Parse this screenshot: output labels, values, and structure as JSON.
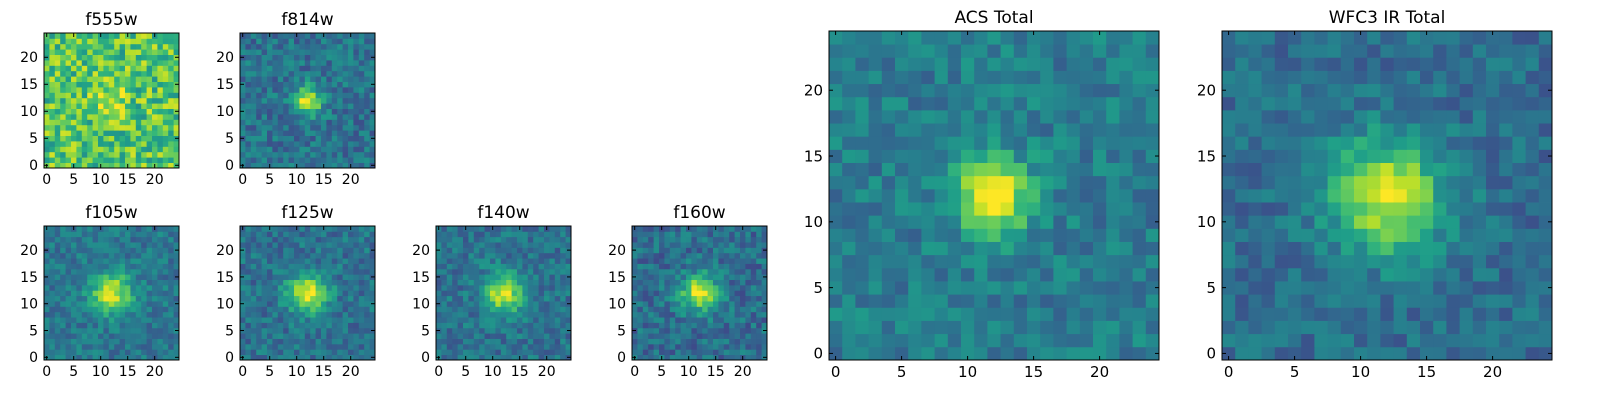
{
  "chart_data": [
    {
      "type": "heatmap",
      "title": "f555w",
      "xlim": [
        -0.5,
        24.5
      ],
      "ylim": [
        -0.5,
        24.5
      ],
      "origin": "lower",
      "colormap": "viridis",
      "xticks": [
        "0",
        "5",
        "10",
        "15",
        "20"
      ],
      "yticks": [
        "0",
        "5",
        "10",
        "15",
        "20"
      ],
      "grid_size": [
        25,
        25
      ],
      "source_center": [
        12,
        12
      ],
      "source_width": 2.0,
      "source_peak": 0.25,
      "background": 0.72,
      "noise": 0.22
    },
    {
      "type": "heatmap",
      "title": "f814w",
      "xlim": [
        -0.5,
        24.5
      ],
      "ylim": [
        -0.5,
        24.5
      ],
      "origin": "lower",
      "colormap": "viridis",
      "xticks": [
        "0",
        "5",
        "10",
        "15",
        "20"
      ],
      "yticks": [
        "0",
        "5",
        "10",
        "15",
        "20"
      ],
      "grid_size": [
        25,
        25
      ],
      "source_center": [
        12,
        12
      ],
      "source_width": 1.8,
      "source_peak": 0.6,
      "background": 0.38,
      "noise": 0.14
    },
    {
      "type": "heatmap",
      "title": "f105w",
      "xlim": [
        -0.5,
        24.5
      ],
      "ylim": [
        -0.5,
        24.5
      ],
      "origin": "lower",
      "colormap": "viridis",
      "xticks": [
        "0",
        "5",
        "10",
        "15",
        "20"
      ],
      "yticks": [
        "0",
        "5",
        "10",
        "15",
        "20"
      ],
      "grid_size": [
        25,
        25
      ],
      "source_center": [
        12,
        12
      ],
      "source_width": 2.6,
      "source_peak": 0.55,
      "background": 0.4,
      "noise": 0.12
    },
    {
      "type": "heatmap",
      "title": "f125w",
      "xlim": [
        -0.5,
        24.5
      ],
      "ylim": [
        -0.5,
        24.5
      ],
      "origin": "lower",
      "colormap": "viridis",
      "xticks": [
        "0",
        "5",
        "10",
        "15",
        "20"
      ],
      "yticks": [
        "0",
        "5",
        "10",
        "15",
        "20"
      ],
      "grid_size": [
        25,
        25
      ],
      "source_center": [
        12,
        12
      ],
      "source_width": 2.6,
      "source_peak": 0.55,
      "background": 0.38,
      "noise": 0.13
    },
    {
      "type": "heatmap",
      "title": "f140w",
      "xlim": [
        -0.5,
        24.5
      ],
      "ylim": [
        -0.5,
        24.5
      ],
      "origin": "lower",
      "colormap": "viridis",
      "xticks": [
        "0",
        "5",
        "10",
        "15",
        "20"
      ],
      "yticks": [
        "0",
        "5",
        "10",
        "15",
        "20"
      ],
      "grid_size": [
        25,
        25
      ],
      "source_center": [
        12,
        12
      ],
      "source_width": 2.6,
      "source_peak": 0.55,
      "background": 0.38,
      "noise": 0.13
    },
    {
      "type": "heatmap",
      "title": "f160w",
      "xlim": [
        -0.5,
        24.5
      ],
      "ylim": [
        -0.5,
        24.5
      ],
      "origin": "lower",
      "colormap": "viridis",
      "xticks": [
        "0",
        "5",
        "10",
        "15",
        "20"
      ],
      "yticks": [
        "0",
        "5",
        "10",
        "15",
        "20"
      ],
      "grid_size": [
        25,
        25
      ],
      "source_center": [
        12,
        12
      ],
      "source_width": 2.4,
      "source_peak": 0.58,
      "background": 0.36,
      "noise": 0.14
    },
    {
      "type": "heatmap",
      "title": "ACS Total",
      "xlim": [
        -0.5,
        24.5
      ],
      "ylim": [
        -0.5,
        24.5
      ],
      "origin": "lower",
      "colormap": "viridis",
      "xticks": [
        "0",
        "5",
        "10",
        "15",
        "20"
      ],
      "yticks": [
        "0",
        "5",
        "10",
        "15",
        "20"
      ],
      "grid_size": [
        25,
        25
      ],
      "source_center": [
        12,
        12
      ],
      "source_width": 2.0,
      "source_peak": 0.6,
      "background": 0.42,
      "noise": 0.12
    },
    {
      "type": "heatmap",
      "title": "WFC3 IR Total",
      "xlim": [
        -0.5,
        24.5
      ],
      "ylim": [
        -0.5,
        24.5
      ],
      "origin": "lower",
      "colormap": "viridis",
      "xticks": [
        "0",
        "5",
        "10",
        "15",
        "20"
      ],
      "yticks": [
        "0",
        "5",
        "10",
        "15",
        "20"
      ],
      "grid_size": [
        25,
        25
      ],
      "source_center": [
        12,
        12
      ],
      "source_width": 3.0,
      "source_peak": 0.6,
      "background": 0.36,
      "noise": 0.11
    }
  ],
  "colors": {
    "viridis_stops": [
      "#440154",
      "#482878",
      "#3e4989",
      "#31688e",
      "#26828e",
      "#1f9e89",
      "#35b779",
      "#6ece58",
      "#b5de2b",
      "#fde725"
    ],
    "axes": "#000000",
    "background": "#ffffff"
  }
}
